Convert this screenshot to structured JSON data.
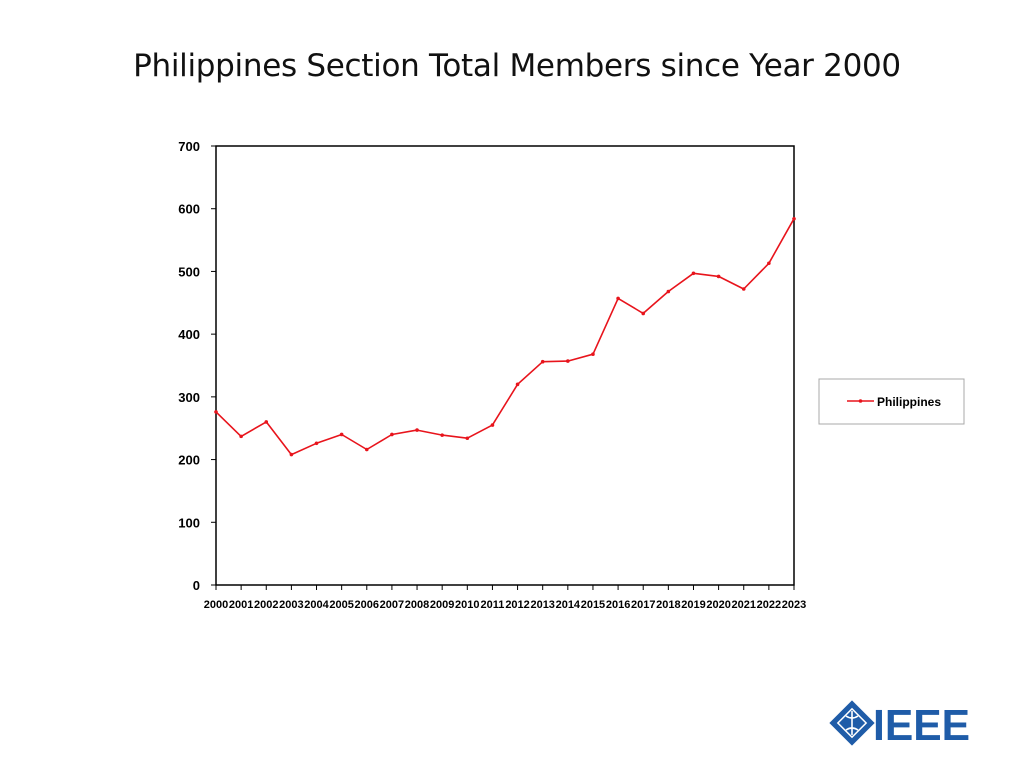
{
  "slide": {
    "title": "Philippines Section Total Members since Year 2000"
  },
  "chart_data": {
    "type": "line",
    "title": "Philippines Section Total Members since Year 2000",
    "xlabel": "",
    "ylabel": "",
    "categories": [
      "2000",
      "2001",
      "2002",
      "2003",
      "2004",
      "2005",
      "2006",
      "2007",
      "2008",
      "2009",
      "2010",
      "2011",
      "2012",
      "2013",
      "2014",
      "2015",
      "2016",
      "2017",
      "2018",
      "2019",
      "2020",
      "2021",
      "2022",
      "2023"
    ],
    "series": [
      {
        "name": "Philippines",
        "values": [
          276,
          237,
          260,
          208,
          226,
          240,
          216,
          240,
          247,
          239,
          234,
          255,
          320,
          356,
          357,
          368,
          457,
          433,
          468,
          497,
          492,
          472,
          513,
          584
        ]
      }
    ],
    "ylim": [
      0,
      700
    ],
    "yticks": [
      "0",
      "100",
      "200",
      "300",
      "400",
      "500",
      "600",
      "700"
    ],
    "grid": false,
    "legend": "right",
    "color": "#e8141c"
  },
  "logo": {
    "text": "IEEE",
    "color": "#1f5ca8"
  }
}
